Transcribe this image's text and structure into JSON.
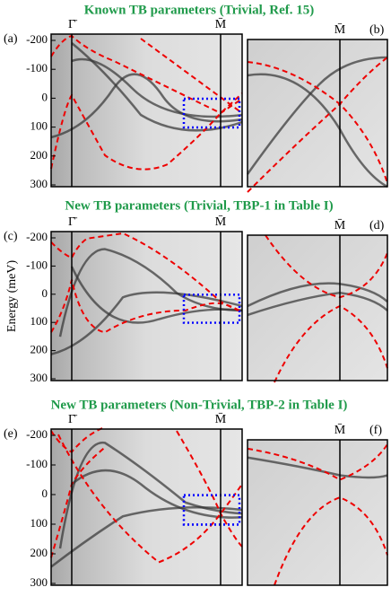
{
  "rows": [
    {
      "title": "Known TB parameters (Trivial, Ref. 15)",
      "left_label": "(a)",
      "right_label": "(b)"
    },
    {
      "title": "New TB parameters (Trivial, TBP-1 in Table I)",
      "left_label": "(c)",
      "right_label": "(d)"
    },
    {
      "title": "New TB parameters (Non-Trivial, TBP-2 in Table I)",
      "left_label": "(e)",
      "right_label": "(f)"
    }
  ],
  "y_axis": {
    "label": "Energy (meV)",
    "ticks": [
      "-200",
      "-100",
      "0",
      "100",
      "200",
      "300"
    ]
  },
  "k_labels": {
    "gamma": "Γ̄",
    "m": "M̄"
  }
}
